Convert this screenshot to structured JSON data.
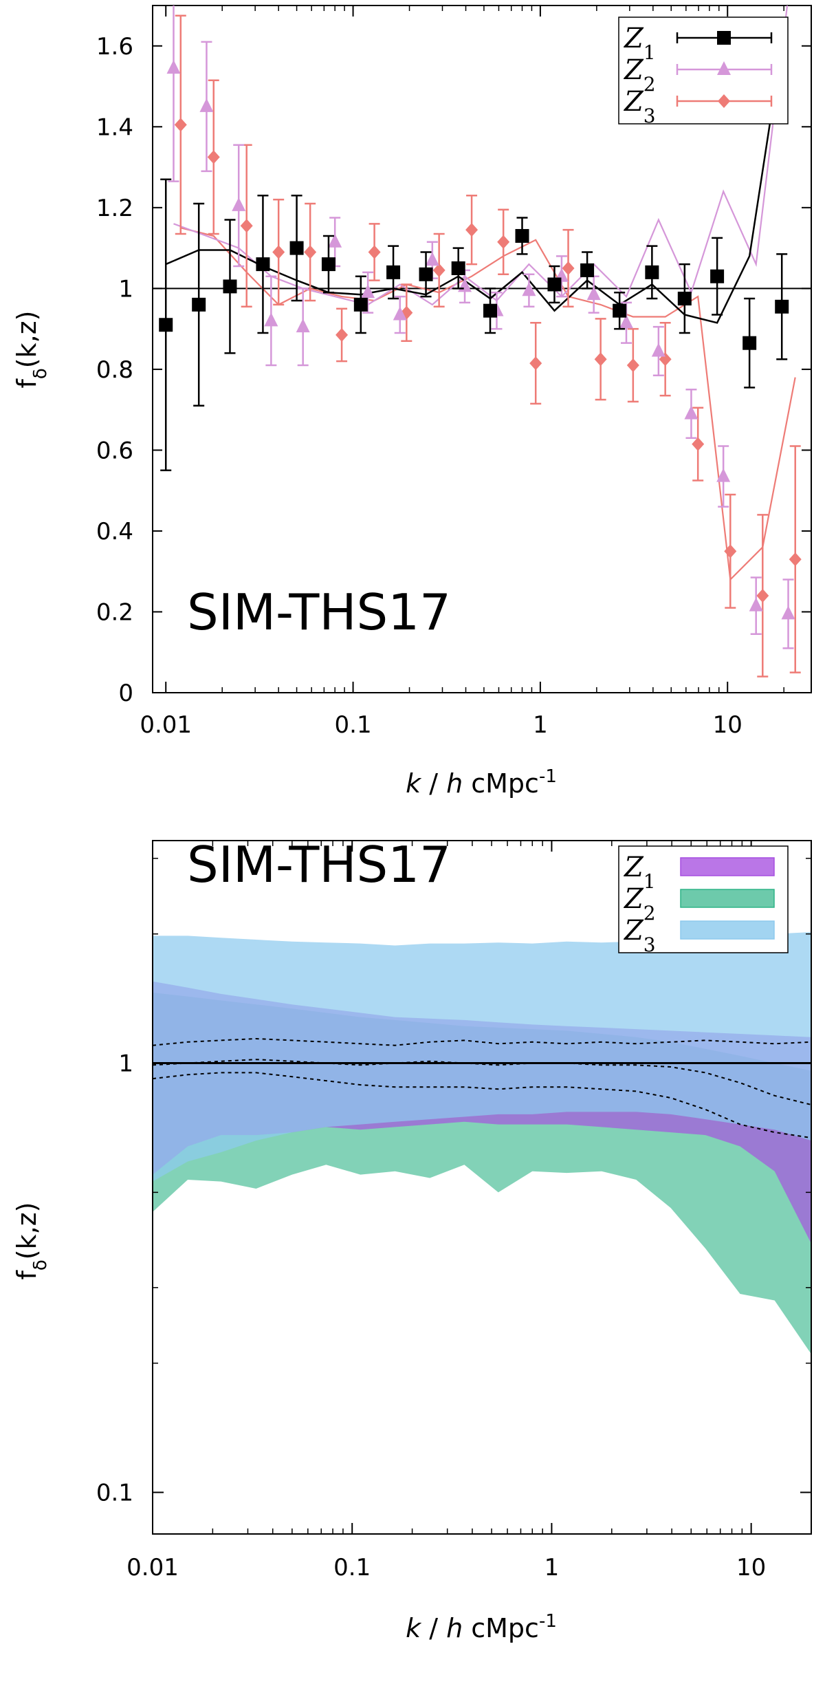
{
  "chart_data": [
    {
      "type": "scatter",
      "title": "SIM-THS17",
      "xlabel_italic_k": "k",
      "xlabel_slash": " / ",
      "xlabel_italic_h": "h",
      "xlabel_unit": " cMpc",
      "xlabel_exp": "-1",
      "ylabel_main": "f",
      "ylabel_sub": "δ",
      "ylabel_args": "(k,z)",
      "xscale": "log",
      "xlim": [
        0.0085,
        28
      ],
      "ylim": [
        0,
        1.7
      ],
      "reference_line": 1,
      "x_ticks": [
        0.01,
        0.1,
        1,
        10
      ],
      "x_tick_labels": [
        "0.01",
        "0.1",
        "1",
        "10"
      ],
      "y_ticks": [
        0,
        0.2,
        0.4,
        0.6,
        0.8,
        1,
        1.2,
        1.4,
        1.6
      ],
      "y_tick_labels": [
        "0",
        "0.2",
        "0.4",
        "0.6",
        "0.8",
        "1",
        "1.2",
        "1.4",
        "1.6"
      ],
      "legend_position": "top-right",
      "series": [
        {
          "name": "Z",
          "sub": "1",
          "color": "#000000",
          "marker": "square",
          "x": [
            0.01,
            0.015,
            0.022,
            0.033,
            0.05,
            0.074,
            0.11,
            0.164,
            0.245,
            0.365,
            0.54,
            0.8,
            1.19,
            1.78,
            2.65,
            3.95,
            5.9,
            8.8,
            13.1,
            19.5
          ],
          "y": [
            0.91,
            0.96,
            1.005,
            1.06,
            1.1,
            1.06,
            0.96,
            1.04,
            1.035,
            1.05,
            0.945,
            1.13,
            1.01,
            1.045,
            0.945,
            1.04,
            0.975,
            1.03,
            0.865,
            0.955
          ],
          "err": [
            0.36,
            0.25,
            0.165,
            0.17,
            0.13,
            0.07,
            0.07,
            0.065,
            0.055,
            0.05,
            0.055,
            0.045,
            0.045,
            0.045,
            0.045,
            0.065,
            0.085,
            0.095,
            0.11,
            0.13
          ],
          "model_x": [
            0.01,
            0.015,
            0.022,
            0.033,
            0.05,
            0.074,
            0.11,
            0.164,
            0.245,
            0.365,
            0.54,
            0.8,
            1.19,
            1.78,
            2.65,
            3.95,
            5.9,
            8.8,
            13.1,
            19.5
          ],
          "model_y": [
            1.06,
            1.095,
            1.095,
            1.055,
            1.02,
            0.99,
            0.985,
            1.0,
            0.985,
            1.03,
            0.975,
            1.04,
            0.945,
            1.02,
            0.96,
            1.01,
            0.935,
            0.915,
            1.08,
            1.6
          ]
        },
        {
          "name": "Z",
          "sub": "2",
          "color": "#d597d9",
          "marker": "triangle",
          "x": [
            0.011,
            0.0165,
            0.0245,
            0.0365,
            0.054,
            0.08,
            0.12,
            0.178,
            0.265,
            0.395,
            0.585,
            0.87,
            1.3,
            1.93,
            2.88,
            4.28,
            6.4,
            9.5,
            14.2,
            21.1
          ],
          "y": [
            1.545,
            1.45,
            1.205,
            0.92,
            0.905,
            1.115,
            0.99,
            0.935,
            1.07,
            1.005,
            0.945,
            0.995,
            1.03,
            0.985,
            0.915,
            0.845,
            0.69,
            0.535,
            0.215,
            0.195
          ],
          "err": [
            0.28,
            0.16,
            0.15,
            0.11,
            0.095,
            0.06,
            0.05,
            0.045,
            0.045,
            0.04,
            0.045,
            0.04,
            0.05,
            0.045,
            0.05,
            0.06,
            0.06,
            0.075,
            0.07,
            0.085
          ],
          "model_x": [
            0.011,
            0.0165,
            0.0245,
            0.0365,
            0.054,
            0.08,
            0.12,
            0.178,
            0.265,
            0.395,
            0.585,
            0.87,
            1.3,
            1.93,
            2.88,
            4.28,
            6.4,
            9.5,
            14.2,
            21.1
          ],
          "model_y": [
            1.16,
            1.13,
            1.1,
            1.03,
            1.0,
            0.98,
            0.96,
            1.01,
            0.96,
            1.03,
            0.97,
            1.06,
            0.98,
            1.06,
            0.98,
            1.17,
            0.99,
            1.24,
            1.06,
            1.72
          ]
        },
        {
          "name": "Z",
          "sub": "3",
          "color": "#ee7b76",
          "marker": "diamond",
          "x": [
            0.012,
            0.018,
            0.027,
            0.04,
            0.059,
            0.087,
            0.13,
            0.193,
            0.288,
            0.43,
            0.635,
            0.945,
            1.41,
            2.1,
            3.13,
            4.65,
            6.95,
            10.35,
            15.4,
            23.0
          ],
          "y": [
            1.405,
            1.325,
            1.155,
            1.09,
            1.09,
            0.885,
            1.09,
            0.94,
            1.045,
            1.145,
            1.115,
            0.815,
            1.05,
            0.825,
            0.81,
            0.825,
            0.615,
            0.35,
            0.24,
            0.33
          ],
          "err": [
            0.27,
            0.19,
            0.2,
            0.13,
            0.12,
            0.065,
            0.07,
            0.07,
            0.09,
            0.085,
            0.08,
            0.1,
            0.095,
            0.1,
            0.09,
            0.09,
            0.09,
            0.14,
            0.2,
            0.28
          ],
          "model_x": [
            0.012,
            0.018,
            0.027,
            0.04,
            0.059,
            0.087,
            0.13,
            0.193,
            0.288,
            0.43,
            0.635,
            0.945,
            1.41,
            2.1,
            3.13,
            4.65,
            6.95,
            10.35,
            15.4,
            23.0
          ],
          "model_y": [
            1.15,
            1.13,
            1.04,
            0.96,
            1.0,
            0.98,
            0.97,
            1.01,
            0.99,
            1.03,
            1.08,
            1.12,
            0.98,
            0.96,
            0.93,
            0.93,
            0.98,
            0.28,
            0.36,
            0.78
          ]
        }
      ]
    },
    {
      "type": "area",
      "title": "SIM-THS17",
      "xlabel_italic_k": "k",
      "xlabel_slash": " / ",
      "xlabel_italic_h": "h",
      "xlabel_unit": " cMpc",
      "xlabel_exp": "-1",
      "ylabel_main": "f",
      "ylabel_sub": "δ",
      "ylabel_args": "(k,z)",
      "xscale": "log",
      "yscale": "log",
      "xlim": [
        0.01,
        20
      ],
      "ylim": [
        0.08,
        3.3
      ],
      "reference_line": 1,
      "x_ticks": [
        0.01,
        0.1,
        1,
        10
      ],
      "x_tick_labels": [
        "0.01",
        "0.1",
        "1",
        "10"
      ],
      "y_ticks": [
        0.1,
        1
      ],
      "y_tick_labels": [
        "0.1",
        "1"
      ],
      "y_minor_ticks": [
        0.2,
        0.3,
        0.5,
        2,
        3
      ],
      "legend_position": "top-right",
      "x": [
        0.01,
        0.015,
        0.022,
        0.033,
        0.05,
        0.074,
        0.11,
        0.164,
        0.245,
        0.365,
        0.54,
        0.8,
        1.19,
        1.78,
        2.65,
        3.95,
        5.9,
        8.8,
        13.1,
        20.0
      ],
      "bands": [
        {
          "name": "Z",
          "sub": "1",
          "color": "#a64fe0",
          "opacity": 0.68,
          "upper": [
            1.55,
            1.5,
            1.45,
            1.41,
            1.37,
            1.34,
            1.31,
            1.28,
            1.27,
            1.26,
            1.245,
            1.23,
            1.22,
            1.21,
            1.2,
            1.19,
            1.18,
            1.17,
            1.16,
            1.15
          ],
          "lower": [
            0.55,
            0.64,
            0.68,
            0.68,
            0.69,
            0.71,
            0.7,
            0.71,
            0.72,
            0.73,
            0.72,
            0.72,
            0.72,
            0.71,
            0.7,
            0.69,
            0.68,
            0.64,
            0.56,
            0.38
          ]
        },
        {
          "name": "Z",
          "sub": "2",
          "color": "#2fb487",
          "opacity": 0.6,
          "upper": [
            1.46,
            1.43,
            1.4,
            1.37,
            1.34,
            1.31,
            1.28,
            1.26,
            1.24,
            1.22,
            1.21,
            1.2,
            1.19,
            1.17,
            1.15,
            1.12,
            1.08,
            1.04,
            1.0,
            0.96
          ],
          "lower": [
            0.45,
            0.535,
            0.53,
            0.51,
            0.55,
            0.58,
            0.55,
            0.56,
            0.54,
            0.58,
            0.5,
            0.56,
            0.555,
            0.56,
            0.535,
            0.46,
            0.37,
            0.29,
            0.28,
            0.21
          ]
        },
        {
          "name": "Z",
          "sub": "3",
          "color": "#8ecaee",
          "opacity": 0.72,
          "upper": [
            1.98,
            1.98,
            1.96,
            1.94,
            1.92,
            1.91,
            1.9,
            1.88,
            1.9,
            1.9,
            1.91,
            1.9,
            1.92,
            1.91,
            1.92,
            1.95,
            1.97,
            1.98,
            2.0,
            2.02
          ],
          "lower": [
            0.53,
            0.59,
            0.62,
            0.66,
            0.69,
            0.71,
            0.72,
            0.73,
            0.74,
            0.75,
            0.76,
            0.76,
            0.77,
            0.77,
            0.77,
            0.76,
            0.74,
            0.72,
            0.7,
            0.66
          ]
        }
      ],
      "dashed_lines": [
        [
          1.1,
          1.12,
          1.13,
          1.14,
          1.13,
          1.12,
          1.11,
          1.1,
          1.12,
          1.13,
          1.11,
          1.12,
          1.11,
          1.12,
          1.11,
          1.12,
          1.13,
          1.12,
          1.11,
          1.12
        ],
        [
          0.99,
          1.0,
          1.01,
          1.02,
          1.01,
          1.0,
          0.99,
          1.0,
          1.01,
          1.0,
          0.99,
          1.0,
          1.0,
          0.99,
          0.99,
          0.98,
          0.95,
          0.9,
          0.84,
          0.8
        ],
        [
          0.92,
          0.94,
          0.95,
          0.95,
          0.93,
          0.91,
          0.89,
          0.88,
          0.88,
          0.88,
          0.87,
          0.88,
          0.88,
          0.87,
          0.86,
          0.83,
          0.78,
          0.72,
          0.69,
          0.67
        ]
      ]
    }
  ]
}
